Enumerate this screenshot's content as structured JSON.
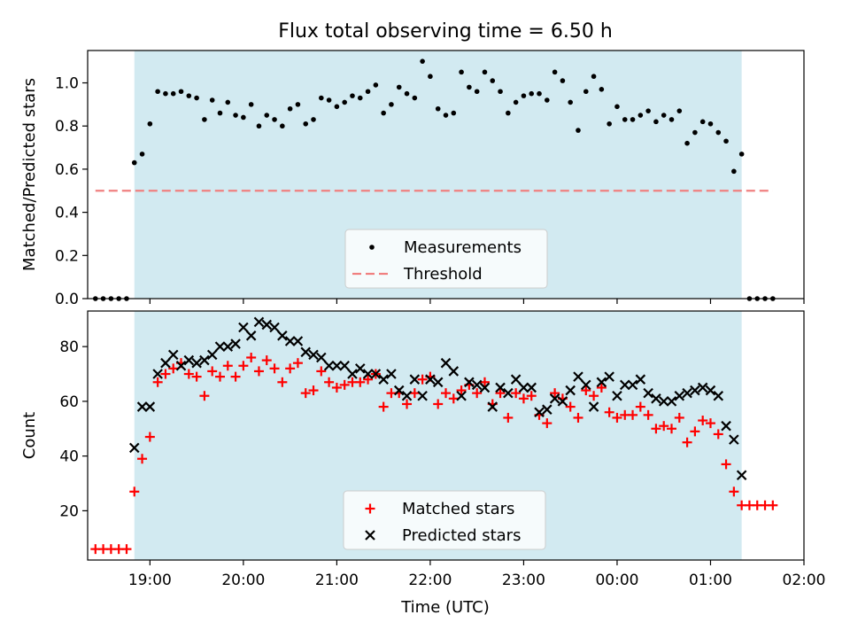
{
  "title": "Flux total observing time = 6.50 h",
  "xlabel": "Time (UTC)",
  "x_ticks": [
    "19:00",
    "20:00",
    "21:00",
    "22:00",
    "23:00",
    "00:00",
    "01:00",
    "02:00"
  ],
  "colors": {
    "observing_window": "#add8e6",
    "measurement": "#000000",
    "threshold": "#f08080",
    "matched": "#ff0000",
    "predicted": "#000000"
  },
  "chart_data": [
    {
      "type": "scatter",
      "ylabel": "Matched/Predicted stars",
      "ylim": [
        0,
        1.15
      ],
      "y_ticks": [
        "0.0",
        "0.2",
        "0.4",
        "0.6",
        "0.8",
        "1.0"
      ],
      "xlim": [
        "18:20",
        "02:00"
      ],
      "observing_window": [
        "18:50",
        "01:20"
      ],
      "threshold": {
        "value": 0.5,
        "from": "18:25",
        "to": "01:40"
      },
      "legend": {
        "placement": "lower center",
        "entries": [
          "Measurements",
          "Threshold"
        ]
      },
      "series": [
        {
          "name": "Measurements",
          "points": [
            [
              "18:25",
              0
            ],
            [
              "18:30",
              0
            ],
            [
              "18:35",
              0
            ],
            [
              "18:40",
              0
            ],
            [
              "18:45",
              0
            ],
            [
              "18:50",
              0.63
            ],
            [
              "18:55",
              0.67
            ],
            [
              "19:00",
              0.81
            ],
            [
              "19:05",
              0.96
            ],
            [
              "19:10",
              0.95
            ],
            [
              "19:15",
              0.95
            ],
            [
              "19:20",
              0.96
            ],
            [
              "19:25",
              0.94
            ],
            [
              "19:30",
              0.93
            ],
            [
              "19:35",
              0.83
            ],
            [
              "19:40",
              0.92
            ],
            [
              "19:45",
              0.86
            ],
            [
              "19:50",
              0.91
            ],
            [
              "19:55",
              0.85
            ],
            [
              "20:00",
              0.84
            ],
            [
              "20:05",
              0.9
            ],
            [
              "20:10",
              0.8
            ],
            [
              "20:15",
              0.85
            ],
            [
              "20:20",
              0.83
            ],
            [
              "20:25",
              0.8
            ],
            [
              "20:30",
              0.88
            ],
            [
              "20:35",
              0.9
            ],
            [
              "20:40",
              0.81
            ],
            [
              "20:45",
              0.83
            ],
            [
              "20:50",
              0.93
            ],
            [
              "20:55",
              0.92
            ],
            [
              "21:00",
              0.89
            ],
            [
              "21:05",
              0.91
            ],
            [
              "21:10",
              0.94
            ],
            [
              "21:15",
              0.93
            ],
            [
              "21:20",
              0.96
            ],
            [
              "21:25",
              0.99
            ],
            [
              "21:30",
              0.86
            ],
            [
              "21:35",
              0.9
            ],
            [
              "21:40",
              0.98
            ],
            [
              "21:45",
              0.95
            ],
            [
              "21:50",
              0.93
            ],
            [
              "21:55",
              1.1
            ],
            [
              "22:00",
              1.03
            ],
            [
              "22:05",
              0.88
            ],
            [
              "22:10",
              0.85
            ],
            [
              "22:15",
              0.86
            ],
            [
              "22:20",
              1.05
            ],
            [
              "22:25",
              0.98
            ],
            [
              "22:30",
              0.96
            ],
            [
              "22:35",
              1.05
            ],
            [
              "22:40",
              1.01
            ],
            [
              "22:45",
              0.96
            ],
            [
              "22:50",
              0.86
            ],
            [
              "22:55",
              0.91
            ],
            [
              "23:00",
              0.94
            ],
            [
              "23:05",
              0.95
            ],
            [
              "23:10",
              0.95
            ],
            [
              "23:15",
              0.92
            ],
            [
              "23:20",
              1.05
            ],
            [
              "23:25",
              1.01
            ],
            [
              "23:30",
              0.91
            ],
            [
              "23:35",
              0.78
            ],
            [
              "23:40",
              0.96
            ],
            [
              "23:45",
              1.03
            ],
            [
              "23:50",
              0.97
            ],
            [
              "23:55",
              0.81
            ],
            [
              "00:00",
              0.89
            ],
            [
              "00:05",
              0.83
            ],
            [
              "00:10",
              0.83
            ],
            [
              "00:15",
              0.85
            ],
            [
              "00:20",
              0.87
            ],
            [
              "00:25",
              0.82
            ],
            [
              "00:30",
              0.85
            ],
            [
              "00:35",
              0.83
            ],
            [
              "00:40",
              0.87
            ],
            [
              "00:45",
              0.72
            ],
            [
              "00:50",
              0.77
            ],
            [
              "00:55",
              0.82
            ],
            [
              "01:00",
              0.81
            ],
            [
              "01:05",
              0.77
            ],
            [
              "01:10",
              0.73
            ],
            [
              "01:15",
              0.59
            ],
            [
              "01:20",
              0.67
            ],
            [
              "01:25",
              0
            ],
            [
              "01:30",
              0
            ],
            [
              "01:35",
              0
            ],
            [
              "01:40",
              0
            ]
          ]
        }
      ]
    },
    {
      "type": "scatter",
      "ylabel": "Count",
      "ylim": [
        2,
        93
      ],
      "y_ticks": [
        "20",
        "40",
        "60",
        "80"
      ],
      "xlim": [
        "18:20",
        "02:00"
      ],
      "observing_window": [
        "18:50",
        "01:20"
      ],
      "legend": {
        "placement": "lower center",
        "entries": [
          "Matched stars",
          "Predicted stars"
        ]
      },
      "series": [
        {
          "name": "Matched stars",
          "points": [
            [
              "18:25",
              6
            ],
            [
              "18:30",
              6
            ],
            [
              "18:35",
              6
            ],
            [
              "18:40",
              6
            ],
            [
              "18:45",
              6
            ],
            [
              "18:50",
              27
            ],
            [
              "18:55",
              39
            ],
            [
              "19:00",
              47
            ],
            [
              "19:05",
              67
            ],
            [
              "19:10",
              70
            ],
            [
              "19:15",
              72
            ],
            [
              "19:20",
              74
            ],
            [
              "19:25",
              70
            ],
            [
              "19:30",
              69
            ],
            [
              "19:35",
              62
            ],
            [
              "19:40",
              71
            ],
            [
              "19:45",
              69
            ],
            [
              "19:50",
              73
            ],
            [
              "19:55",
              69
            ],
            [
              "20:00",
              73
            ],
            [
              "20:05",
              76
            ],
            [
              "20:10",
              71
            ],
            [
              "20:15",
              75
            ],
            [
              "20:20",
              72
            ],
            [
              "20:25",
              67
            ],
            [
              "20:30",
              72
            ],
            [
              "20:35",
              74
            ],
            [
              "20:40",
              63
            ],
            [
              "20:45",
              64
            ],
            [
              "20:50",
              71
            ],
            [
              "20:55",
              67
            ],
            [
              "21:00",
              65
            ],
            [
              "21:05",
              66
            ],
            [
              "21:10",
              67
            ],
            [
              "21:15",
              67
            ],
            [
              "21:20",
              68
            ],
            [
              "21:25",
              70
            ],
            [
              "21:30",
              58
            ],
            [
              "21:35",
              63
            ],
            [
              "21:40",
              63
            ],
            [
              "21:45",
              59
            ],
            [
              "21:50",
              63
            ],
            [
              "21:55",
              68
            ],
            [
              "22:00",
              69
            ],
            [
              "22:05",
              59
            ],
            [
              "22:10",
              63
            ],
            [
              "22:15",
              61
            ],
            [
              "22:20",
              64
            ],
            [
              "22:25",
              66
            ],
            [
              "22:30",
              63
            ],
            [
              "22:35",
              67
            ],
            [
              "22:40",
              59
            ],
            [
              "22:45",
              63
            ],
            [
              "22:50",
              54
            ],
            [
              "22:55",
              63
            ],
            [
              "23:00",
              61
            ],
            [
              "23:05",
              62
            ],
            [
              "23:10",
              55
            ],
            [
              "23:15",
              52
            ],
            [
              "23:20",
              63
            ],
            [
              "23:25",
              61
            ],
            [
              "23:30",
              58
            ],
            [
              "23:35",
              54
            ],
            [
              "23:40",
              64
            ],
            [
              "23:45",
              62
            ],
            [
              "23:50",
              65
            ],
            [
              "23:55",
              56
            ],
            [
              "00:00",
              54
            ],
            [
              "00:05",
              55
            ],
            [
              "00:10",
              55
            ],
            [
              "00:15",
              58
            ],
            [
              "00:20",
              55
            ],
            [
              "00:25",
              50
            ],
            [
              "00:30",
              51
            ],
            [
              "00:35",
              50
            ],
            [
              "00:40",
              54
            ],
            [
              "00:45",
              45
            ],
            [
              "00:50",
              49
            ],
            [
              "00:55",
              53
            ],
            [
              "01:00",
              52
            ],
            [
              "01:05",
              48
            ],
            [
              "01:10",
              37
            ],
            [
              "01:15",
              27
            ],
            [
              "01:20",
              22
            ],
            [
              "01:25",
              22
            ],
            [
              "01:30",
              22
            ],
            [
              "01:35",
              22
            ],
            [
              "01:40",
              22
            ]
          ]
        },
        {
          "name": "Predicted stars",
          "points": [
            [
              "18:50",
              43
            ],
            [
              "18:55",
              58
            ],
            [
              "19:00",
              58
            ],
            [
              "19:05",
              70
            ],
            [
              "19:10",
              74
            ],
            [
              "19:15",
              77
            ],
            [
              "19:20",
              73
            ],
            [
              "19:25",
              75
            ],
            [
              "19:30",
              74
            ],
            [
              "19:35",
              75
            ],
            [
              "19:40",
              77
            ],
            [
              "19:45",
              80
            ],
            [
              "19:50",
              80
            ],
            [
              "19:55",
              81
            ],
            [
              "20:00",
              87
            ],
            [
              "20:05",
              84
            ],
            [
              "20:10",
              89
            ],
            [
              "20:15",
              88
            ],
            [
              "20:20",
              87
            ],
            [
              "20:25",
              84
            ],
            [
              "20:30",
              82
            ],
            [
              "20:35",
              82
            ],
            [
              "20:40",
              78
            ],
            [
              "20:45",
              77
            ],
            [
              "20:50",
              76
            ],
            [
              "20:55",
              73
            ],
            [
              "21:00",
              73
            ],
            [
              "21:05",
              73
            ],
            [
              "21:10",
              70
            ],
            [
              "21:15",
              72
            ],
            [
              "21:20",
              70
            ],
            [
              "21:25",
              70
            ],
            [
              "21:30",
              68
            ],
            [
              "21:35",
              70
            ],
            [
              "21:40",
              64
            ],
            [
              "21:45",
              62
            ],
            [
              "21:50",
              68
            ],
            [
              "21:55",
              62
            ],
            [
              "22:00",
              68
            ],
            [
              "22:05",
              67
            ],
            [
              "22:10",
              74
            ],
            [
              "22:15",
              71
            ],
            [
              "22:20",
              62
            ],
            [
              "22:25",
              67
            ],
            [
              "22:30",
              66
            ],
            [
              "22:35",
              65
            ],
            [
              "22:40",
              58
            ],
            [
              "22:45",
              65
            ],
            [
              "22:50",
              63
            ],
            [
              "22:55",
              68
            ],
            [
              "23:00",
              65
            ],
            [
              "23:05",
              65
            ],
            [
              "23:10",
              56
            ],
            [
              "23:15",
              57
            ],
            [
              "23:20",
              61
            ],
            [
              "23:25",
              60
            ],
            [
              "23:30",
              64
            ],
            [
              "23:35",
              69
            ],
            [
              "23:40",
              66
            ],
            [
              "23:45",
              58
            ],
            [
              "23:50",
              67
            ],
            [
              "23:55",
              69
            ],
            [
              "00:00",
              62
            ],
            [
              "00:05",
              66
            ],
            [
              "00:10",
              66
            ],
            [
              "00:15",
              68
            ],
            [
              "00:20",
              63
            ],
            [
              "00:25",
              61
            ],
            [
              "00:30",
              60
            ],
            [
              "00:35",
              60
            ],
            [
              "00:40",
              62
            ],
            [
              "00:45",
              63
            ],
            [
              "00:50",
              64
            ],
            [
              "00:55",
              65
            ],
            [
              "01:00",
              64
            ],
            [
              "01:05",
              62
            ],
            [
              "01:10",
              51
            ],
            [
              "01:15",
              46
            ],
            [
              "01:20",
              33
            ]
          ]
        }
      ]
    }
  ]
}
